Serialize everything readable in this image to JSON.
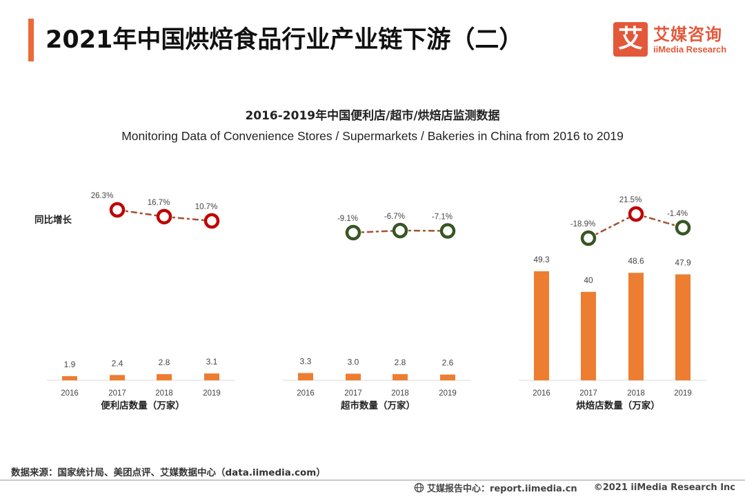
{
  "header": {
    "title": "2021年中国烘焙食品行业产业链下游（二）",
    "logo_mark": "艾",
    "logo_cn": "艾媒咨询",
    "logo_en": "iiMedia Research"
  },
  "colors": {
    "accent": "#ec6a36",
    "bar": "#ed7d31",
    "growth_positive": "#c00000",
    "growth_negative": "#375623",
    "connector": "#a0522d"
  },
  "chart_data": {
    "type": "bar",
    "title": "2016-2019年中国便利店/超市/烘焙店监测数据",
    "subtitle": "Monitoring Data of Convenience Stores / Supermarkets / Bakeries in China from 2016 to 2019",
    "growth_label": "同比增长",
    "groups": [
      {
        "name": "便利店数量（万家）",
        "categories": [
          "2016",
          "2017",
          "2018",
          "2019"
        ],
        "values": [
          1.9,
          2.4,
          2.8,
          3.1
        ],
        "value_labels": [
          "1.9",
          "2.4",
          "2.8",
          "3.1"
        ],
        "growth": [
          null,
          26.3,
          16.7,
          10.7
        ],
        "growth_labels": [
          "",
          "26.3%",
          "16.7%",
          "10.7%"
        ]
      },
      {
        "name": "超市数量（万家）",
        "categories": [
          "2016",
          "2017",
          "2018",
          "2019"
        ],
        "values": [
          3.3,
          3.0,
          2.8,
          2.6
        ],
        "value_labels": [
          "3.3",
          "3.0",
          "2.8",
          "2.6"
        ],
        "growth": [
          null,
          -9.1,
          -6.7,
          -7.1
        ],
        "growth_labels": [
          "",
          "-9.1%",
          "-6.7%",
          "-7.1%"
        ]
      },
      {
        "name": "烘焙店数量（万家）",
        "categories": [
          "2016",
          "2017",
          "2018",
          "2019"
        ],
        "values": [
          49.3,
          40,
          48.6,
          47.9
        ],
        "value_labels": [
          "49.3",
          "40",
          "48.6",
          "47.9"
        ],
        "growth": [
          null,
          -18.9,
          21.5,
          -1.4
        ],
        "growth_labels": [
          "",
          "-18.9%",
          "21.5%",
          "-1.4%"
        ]
      }
    ]
  },
  "footer": {
    "source": "数据来源：国家统计局、美团点评、艾媒数据中心（data.iimedia.com）",
    "report_center": "艾媒报告中心：report.iimedia.cn",
    "copyright": "©2021  iiMedia Research  Inc"
  }
}
